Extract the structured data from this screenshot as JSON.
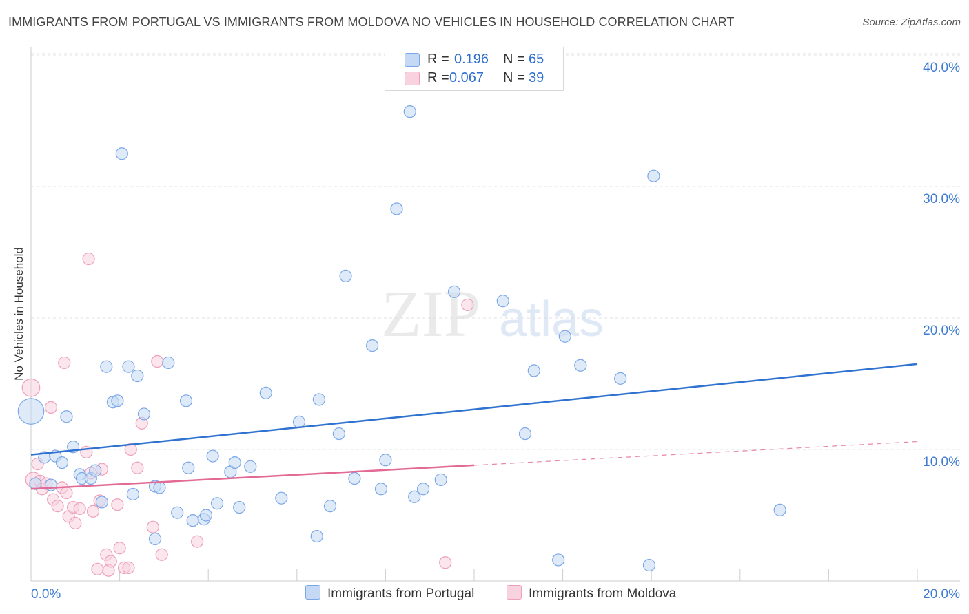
{
  "title": "IMMIGRANTS FROM PORTUGAL VS IMMIGRANTS FROM MOLDOVA NO VEHICLES IN HOUSEHOLD CORRELATION CHART",
  "source": "Source: ZipAtlas.com",
  "watermark": {
    "zip": "ZIP",
    "atlas": "atlas"
  },
  "legend": {
    "rows": [
      {
        "r_label": "R =",
        "r_value": "0.196",
        "n_label": "N =",
        "n_value": "65"
      },
      {
        "r_label": "R =",
        "r_value": "0.067",
        "n_label": "N =",
        "n_value": "39"
      }
    ]
  },
  "chart_data": {
    "type": "scatter",
    "title": "IMMIGRANTS FROM PORTUGAL VS IMMIGRANTS FROM MOLDOVA NO VEHICLES IN HOUSEHOLD CORRELATION CHART",
    "xlabel": "",
    "ylabel": "No Vehicles in Household",
    "xlim": [
      0,
      20
    ],
    "ylim": [
      0,
      40
    ],
    "x_tick_labels": [
      "0.0%",
      "20.0%"
    ],
    "y_tick_labels": [
      "10.0%",
      "20.0%",
      "30.0%",
      "40.0%"
    ],
    "y_ticks": [
      10,
      20,
      30,
      40
    ],
    "grid": true,
    "series": [
      {
        "name": "Immigrants from Portugal",
        "color": "#7aa7e8",
        "fill": "#c5d9f4",
        "line_color": "#2f72d0",
        "r": 0.196,
        "n": 65,
        "trend": {
          "x0": 0,
          "y0": 9.6,
          "x1": 20,
          "y1": 16.5
        },
        "points": [
          [
            0.0,
            12.9,
            2.2
          ],
          [
            0.1,
            7.4,
            1
          ],
          [
            0.3,
            9.4,
            1
          ],
          [
            0.45,
            7.3,
            1
          ],
          [
            0.55,
            9.5,
            1
          ],
          [
            0.7,
            9.0,
            1
          ],
          [
            0.8,
            12.5,
            1
          ],
          [
            0.95,
            10.2,
            1
          ],
          [
            1.1,
            8.1,
            1
          ],
          [
            1.15,
            7.8,
            1
          ],
          [
            1.35,
            7.8,
            1
          ],
          [
            1.45,
            8.4,
            1
          ],
          [
            1.6,
            6.0,
            1
          ],
          [
            1.7,
            16.3,
            1
          ],
          [
            1.85,
            13.6,
            1
          ],
          [
            1.95,
            13.7,
            1
          ],
          [
            2.05,
            32.5,
            1
          ],
          [
            2.2,
            16.3,
            1
          ],
          [
            2.3,
            6.6,
            1
          ],
          [
            2.4,
            15.6,
            1
          ],
          [
            2.55,
            12.7,
            1
          ],
          [
            2.8,
            7.2,
            1
          ],
          [
            2.9,
            7.1,
            1
          ],
          [
            2.8,
            3.2,
            1
          ],
          [
            3.1,
            16.6,
            1
          ],
          [
            3.3,
            5.2,
            1
          ],
          [
            3.5,
            13.7,
            1
          ],
          [
            3.55,
            8.6,
            1
          ],
          [
            3.65,
            4.6,
            1
          ],
          [
            3.9,
            4.7,
            1
          ],
          [
            3.95,
            5.0,
            1
          ],
          [
            4.1,
            9.5,
            1
          ],
          [
            4.2,
            5.9,
            1
          ],
          [
            4.5,
            8.3,
            1
          ],
          [
            4.6,
            9.0,
            1
          ],
          [
            4.7,
            5.6,
            1
          ],
          [
            4.95,
            8.7,
            1
          ],
          [
            5.3,
            14.3,
            1
          ],
          [
            5.65,
            6.3,
            1
          ],
          [
            6.05,
            12.1,
            1
          ],
          [
            6.45,
            3.4,
            1
          ],
          [
            6.5,
            13.8,
            1
          ],
          [
            6.75,
            5.7,
            1
          ],
          [
            6.95,
            11.2,
            1
          ],
          [
            7.1,
            23.2,
            1
          ],
          [
            7.3,
            7.8,
            1
          ],
          [
            7.7,
            17.9,
            1
          ],
          [
            7.9,
            7.0,
            1
          ],
          [
            8.0,
            9.2,
            1
          ],
          [
            8.25,
            28.3,
            1
          ],
          [
            8.55,
            35.7,
            1
          ],
          [
            8.65,
            6.4,
            1
          ],
          [
            8.85,
            7.0,
            1
          ],
          [
            9.25,
            7.7,
            1
          ],
          [
            9.55,
            22.0,
            1
          ],
          [
            10.65,
            21.3,
            1
          ],
          [
            11.15,
            11.2,
            1
          ],
          [
            11.35,
            16.0,
            1
          ],
          [
            11.9,
            1.6,
            1
          ],
          [
            12.05,
            18.6,
            1
          ],
          [
            12.4,
            16.4,
            1
          ],
          [
            13.3,
            15.4,
            1
          ],
          [
            14.05,
            30.8,
            1
          ],
          [
            13.95,
            1.2,
            1
          ],
          [
            16.9,
            5.4,
            1
          ]
        ]
      },
      {
        "name": "Immigrants from Moldova",
        "color": "#eea0bb",
        "fill": "#f8d2df",
        "line_color": "#e26a95",
        "r": 0.067,
        "n": 39,
        "trend": {
          "x0": 0,
          "y0": 7.0,
          "x1": 10,
          "y1": 8.8,
          "dash_x1": 20,
          "dash_y1": 10.6
        },
        "points": [
          [
            0.0,
            14.7,
            1.5
          ],
          [
            0.05,
            7.7,
            1.3
          ],
          [
            0.15,
            8.9,
            1
          ],
          [
            0.2,
            7.6,
            1
          ],
          [
            0.25,
            7.0,
            1
          ],
          [
            0.35,
            7.4,
            1
          ],
          [
            0.45,
            13.2,
            1
          ],
          [
            0.5,
            6.2,
            1
          ],
          [
            0.6,
            5.7,
            1
          ],
          [
            0.7,
            7.1,
            1
          ],
          [
            0.75,
            16.6,
            1
          ],
          [
            0.8,
            6.7,
            1
          ],
          [
            0.85,
            4.9,
            1
          ],
          [
            0.95,
            5.6,
            1
          ],
          [
            1.0,
            4.4,
            1
          ],
          [
            1.1,
            5.5,
            1
          ],
          [
            1.25,
            9.8,
            1
          ],
          [
            1.3,
            24.5,
            1
          ],
          [
            1.35,
            8.2,
            1
          ],
          [
            1.4,
            5.3,
            1
          ],
          [
            1.5,
            0.9,
            1
          ],
          [
            1.55,
            6.1,
            1
          ],
          [
            1.6,
            8.5,
            1
          ],
          [
            1.7,
            2.0,
            1
          ],
          [
            1.75,
            0.8,
            1
          ],
          [
            1.8,
            1.5,
            1
          ],
          [
            1.95,
            5.8,
            1
          ],
          [
            2.0,
            2.5,
            1
          ],
          [
            2.1,
            1.0,
            1
          ],
          [
            2.2,
            1.0,
            1
          ],
          [
            2.25,
            10.0,
            1
          ],
          [
            2.4,
            8.6,
            1
          ],
          [
            2.5,
            12.0,
            1
          ],
          [
            2.75,
            4.1,
            1
          ],
          [
            2.85,
            16.7,
            1
          ],
          [
            2.95,
            2.0,
            1
          ],
          [
            3.75,
            3.0,
            1
          ],
          [
            9.35,
            1.4,
            1
          ],
          [
            9.85,
            21.0,
            1
          ]
        ]
      }
    ]
  }
}
